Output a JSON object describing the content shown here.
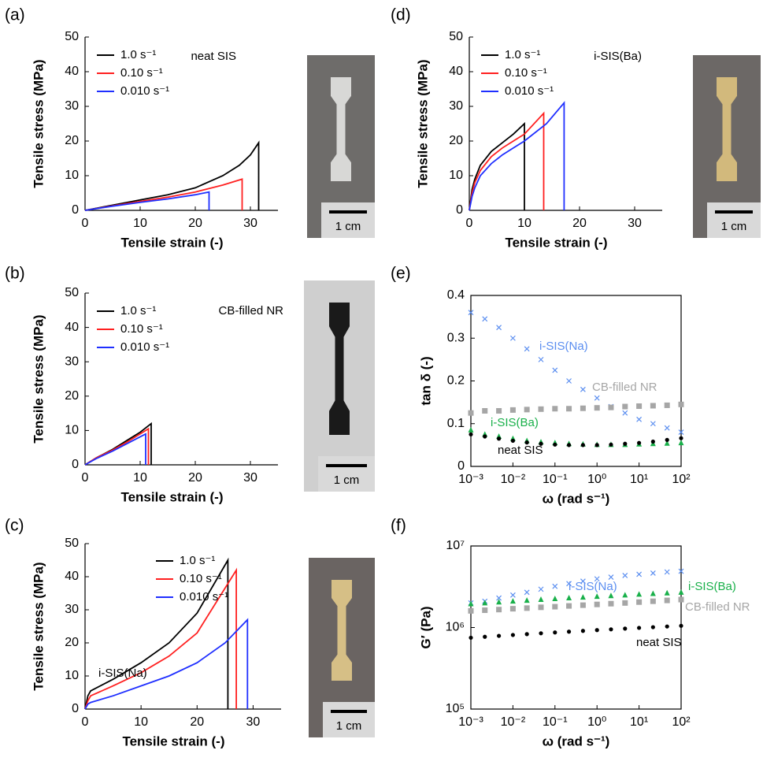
{
  "chart_data": [
    {
      "type": "line",
      "label": "(a)",
      "annotations": [
        "neat SIS"
      ],
      "scale_bar_label": "1 cm",
      "x_label": "Tensile strain (-)",
      "y_label": "Tensile stress (MPa)",
      "xlim": [
        0,
        35
      ],
      "xticks": [
        0,
        10,
        20,
        30
      ],
      "ylim": [
        0,
        50
      ],
      "yticks": [
        0,
        10,
        20,
        30,
        40,
        50
      ],
      "legend": "upper left",
      "series": [
        {
          "name": "1.0 s⁻¹",
          "color": "#000000",
          "x": [
            0,
            5,
            10,
            15,
            20,
            25,
            28,
            30,
            31.5,
            31.5
          ],
          "values": [
            0,
            1.5,
            3,
            4.5,
            6.5,
            10,
            13,
            16,
            19.5,
            0
          ]
        },
        {
          "name": "0.10 s⁻¹",
          "color": "#ff2020",
          "x": [
            0,
            5,
            10,
            15,
            20,
            25,
            28.5,
            28.5
          ],
          "values": [
            0,
            1.3,
            2.6,
            3.8,
            5.3,
            7.3,
            9,
            0
          ]
        },
        {
          "name": "0.010 s⁻¹",
          "color": "#1f2fff",
          "x": [
            0,
            5,
            10,
            15,
            20,
            22.5,
            22.5
          ],
          "values": [
            0,
            1.2,
            2.3,
            3.3,
            4.5,
            5.3,
            0
          ]
        }
      ]
    },
    {
      "type": "line",
      "label": "(b)",
      "annotations": [
        "CB-filled NR"
      ],
      "scale_bar_label": "1 cm",
      "x_label": "Tensile strain (-)",
      "y_label": "Tensile stress (MPa)",
      "xlim": [
        0,
        35
      ],
      "xticks": [
        0,
        10,
        20,
        30
      ],
      "ylim": [
        0,
        50
      ],
      "yticks": [
        0,
        10,
        20,
        30,
        40,
        50
      ],
      "legend": "upper left",
      "series": [
        {
          "name": "1.0 s⁻¹",
          "color": "#000000",
          "x": [
            0,
            2,
            5,
            8,
            10,
            12,
            12
          ],
          "values": [
            0,
            2,
            4.5,
            7.5,
            9.5,
            12,
            0
          ]
        },
        {
          "name": "0.10 s⁻¹",
          "color": "#ff2020",
          "x": [
            0,
            2,
            5,
            8,
            11.5,
            11.5
          ],
          "values": [
            0,
            2,
            4.3,
            7,
            10.5,
            0
          ]
        },
        {
          "name": "0.010 s⁻¹",
          "color": "#1f2fff",
          "x": [
            0,
            2,
            5,
            8,
            11,
            11
          ],
          "values": [
            0,
            1.8,
            4,
            6.5,
            9,
            0
          ]
        }
      ]
    },
    {
      "type": "line",
      "label": "(c)",
      "annotations": [
        "i-SIS(Na)"
      ],
      "scale_bar_label": "1 cm",
      "x_label": "Tensile strain (-)",
      "y_label": "Tensile stress (MPa)",
      "xlim": [
        0,
        35
      ],
      "xticks": [
        0,
        10,
        20,
        30
      ],
      "ylim": [
        0,
        50
      ],
      "yticks": [
        0,
        10,
        20,
        30,
        40,
        50
      ],
      "legend": "upper center",
      "series": [
        {
          "name": "1.0 s⁻¹",
          "color": "#000000",
          "x": [
            0,
            0.5,
            1,
            5,
            10,
            15,
            20,
            25.5,
            25.5
          ],
          "values": [
            0,
            4,
            5.5,
            9,
            14,
            20,
            29,
            45,
            0
          ]
        },
        {
          "name": "0.10 s⁻¹",
          "color": "#ff2020",
          "x": [
            0,
            0.5,
            1,
            5,
            10,
            15,
            20,
            27,
            27
          ],
          "values": [
            0,
            2.5,
            4,
            7,
            11,
            16,
            23,
            42,
            0
          ]
        },
        {
          "name": "0.010 s⁻¹",
          "color": "#1f2fff",
          "x": [
            0,
            0.5,
            1,
            5,
            10,
            15,
            20,
            25,
            29,
            29
          ],
          "values": [
            0,
            1.5,
            2,
            4,
            7,
            10,
            14,
            20,
            27,
            0
          ]
        }
      ]
    },
    {
      "type": "line",
      "label": "(d)",
      "annotations": [
        "i-SIS(Ba)"
      ],
      "scale_bar_label": "1 cm",
      "x_label": "Tensile strain (-)",
      "y_label": "Tensile stress (MPa)",
      "xlim": [
        0,
        35
      ],
      "xticks": [
        0,
        10,
        20,
        30
      ],
      "ylim": [
        0,
        50
      ],
      "yticks": [
        0,
        10,
        20,
        30,
        40,
        50
      ],
      "legend": "upper left",
      "series": [
        {
          "name": "1.0 s⁻¹",
          "color": "#000000",
          "x": [
            0,
            0.5,
            1,
            2,
            4,
            6,
            8,
            10,
            10
          ],
          "values": [
            0,
            6,
            9,
            13,
            17,
            19.5,
            22,
            25,
            0
          ]
        },
        {
          "name": "0.10 s⁻¹",
          "color": "#ff2020",
          "x": [
            0,
            0.5,
            1,
            2,
            4,
            6,
            8,
            10,
            13.5,
            13.5
          ],
          "values": [
            0,
            5,
            8,
            11.5,
            15.5,
            18,
            20,
            22,
            28,
            0
          ]
        },
        {
          "name": "0.010 s⁻¹",
          "color": "#1f2fff",
          "x": [
            0,
            0.5,
            1,
            2,
            4,
            6,
            8,
            10,
            14,
            17.2,
            17.2
          ],
          "values": [
            0,
            4,
            6.5,
            10,
            13.5,
            16,
            18,
            20,
            25,
            31,
            0
          ]
        }
      ]
    },
    {
      "type": "scatter",
      "label": "(e)",
      "x_label": "ω (rad s⁻¹)",
      "y_label": "tan δ (-)",
      "xscale": "log",
      "xlim": [
        0.001,
        100
      ],
      "xticks": [
        {
          "value": 0.001,
          "label": "10⁻³"
        },
        {
          "value": 0.01,
          "label": "10⁻²"
        },
        {
          "value": 0.1,
          "label": "10⁻¹"
        },
        {
          "value": 1,
          "label": "10⁰"
        },
        {
          "value": 10,
          "label": "10¹"
        },
        {
          "value": 100,
          "label": "10²"
        }
      ],
      "ylim": [
        0,
        0.4
      ],
      "yticks": [
        0,
        0.1,
        0.2,
        0.3,
        0.4
      ],
      "x": [
        0.001,
        0.00215,
        0.00464,
        0.01,
        0.0215,
        0.0464,
        0.1,
        0.215,
        0.464,
        1,
        2.15,
        4.64,
        10,
        21.5,
        46.4,
        100
      ],
      "series": [
        {
          "name": "i-SIS(Na)",
          "color": "#5b8ef0",
          "marker": "x",
          "values": [
            0.36,
            0.345,
            0.325,
            0.3,
            0.275,
            0.25,
            0.225,
            0.2,
            0.18,
            0.16,
            0.14,
            0.125,
            0.11,
            0.1,
            0.09,
            0.08
          ]
        },
        {
          "name": "CB-filled NR",
          "color": "#a6a6a6",
          "marker": "square",
          "values": [
            0.125,
            0.13,
            0.13,
            0.132,
            0.133,
            0.134,
            0.135,
            0.135,
            0.136,
            0.137,
            0.138,
            0.14,
            0.141,
            0.142,
            0.143,
            0.145
          ]
        },
        {
          "name": "i-SIS(Ba)",
          "color": "#19b04a",
          "marker": "triangle",
          "values": [
            0.085,
            0.075,
            0.07,
            0.065,
            0.06,
            0.057,
            0.055,
            0.053,
            0.052,
            0.051,
            0.051,
            0.051,
            0.052,
            0.053,
            0.054,
            0.055
          ]
        },
        {
          "name": "neat SIS",
          "color": "#000000",
          "marker": "circle",
          "values": [
            0.075,
            0.07,
            0.065,
            0.06,
            0.056,
            0.053,
            0.051,
            0.05,
            0.05,
            0.05,
            0.051,
            0.053,
            0.055,
            0.058,
            0.062,
            0.066
          ]
        }
      ]
    },
    {
      "type": "scatter",
      "label": "(f)",
      "x_label": "ω (rad s⁻¹)",
      "y_label": "G′ (Pa)",
      "xscale": "log",
      "xlim": [
        0.001,
        100
      ],
      "xticks": [
        {
          "value": 0.001,
          "label": "10⁻³"
        },
        {
          "value": 0.01,
          "label": "10⁻²"
        },
        {
          "value": 0.1,
          "label": "10⁻¹"
        },
        {
          "value": 1,
          "label": "10⁰"
        },
        {
          "value": 10,
          "label": "10¹"
        },
        {
          "value": 100,
          "label": "10²"
        }
      ],
      "yscale": "log",
      "ylim": [
        100000,
        10000000
      ],
      "yticks": [
        {
          "value": 100000,
          "label": "10⁵"
        },
        {
          "value": 1000000,
          "label": "10⁶"
        },
        {
          "value": 10000000,
          "label": "10⁷"
        }
      ],
      "x": [
        0.001,
        0.00215,
        0.00464,
        0.01,
        0.0215,
        0.0464,
        0.1,
        0.215,
        0.464,
        1,
        2.15,
        4.64,
        10,
        21.5,
        46.4,
        100
      ],
      "series": [
        {
          "name": "i-SIS(Na)",
          "color": "#5b8ef0",
          "marker": "x",
          "values": [
            2000000,
            2100000,
            2300000,
            2500000,
            2700000,
            2950000,
            3200000,
            3450000,
            3700000,
            3950000,
            4150000,
            4350000,
            4500000,
            4650000,
            4800000,
            4900000
          ]
        },
        {
          "name": "i-SIS(Ba)",
          "color": "#19b04a",
          "marker": "triangle",
          "values": [
            1950000,
            2000000,
            2050000,
            2100000,
            2150000,
            2200000,
            2250000,
            2300000,
            2350000,
            2400000,
            2450000,
            2500000,
            2550000,
            2600000,
            2650000,
            2700000
          ]
        },
        {
          "name": "CB-filled NR",
          "color": "#a6a6a6",
          "marker": "square",
          "values": [
            1600000,
            1630000,
            1660000,
            1700000,
            1730000,
            1770000,
            1800000,
            1840000,
            1880000,
            1920000,
            1960000,
            2000000,
            2050000,
            2100000,
            2150000,
            2200000
          ]
        },
        {
          "name": "neat SIS",
          "color": "#000000",
          "marker": "circle",
          "values": [
            750000,
            770000,
            790000,
            810000,
            830000,
            850000,
            870000,
            890000,
            910000,
            930000,
            950000,
            970000,
            990000,
            1010000,
            1030000,
            1050000
          ]
        }
      ]
    }
  ]
}
